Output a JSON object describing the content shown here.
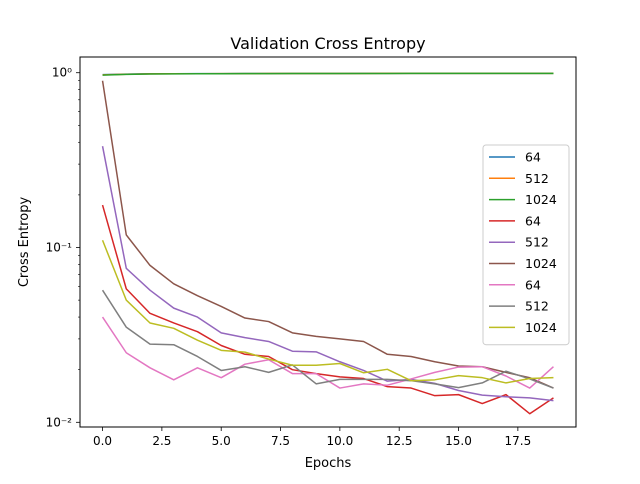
{
  "chart_data": {
    "type": "line",
    "title": "Validation Cross Entropy",
    "xlabel": "Epochs",
    "ylabel": "Cross Entropy",
    "xlim": [
      -0.95,
      19.95
    ],
    "ylim": [
      0.0094,
      1.23
    ],
    "yscale": "log",
    "grid": false,
    "legend_position": "right",
    "x_ticks": [
      0,
      2.5,
      5,
      7.5,
      10,
      12.5,
      15,
      17.5
    ],
    "x_tick_labels": [
      "0.0",
      "2.5",
      "5.0",
      "7.5",
      "10.0",
      "12.5",
      "15.0",
      "17.5"
    ],
    "y_ticks": [
      0.01,
      0.1,
      1
    ],
    "y_tick_labels": [
      "10⁻²",
      "10⁻¹",
      "10⁰"
    ],
    "x": [
      0,
      1,
      2,
      3,
      4,
      5,
      6,
      7,
      8,
      9,
      10,
      11,
      12,
      13,
      14,
      15,
      16,
      17,
      18,
      19
    ],
    "series": [
      {
        "name": "64",
        "color": "#1f77b4",
        "values": [
          0.975,
          0.982,
          0.986,
          0.987,
          0.988,
          0.988,
          0.989,
          0.989,
          0.99,
          0.99,
          0.99,
          0.991,
          0.991,
          0.991,
          0.991,
          0.991,
          0.992,
          0.992,
          0.992,
          0.992
        ]
      },
      {
        "name": "512",
        "color": "#ff7f0e",
        "values": [
          0.972,
          0.98,
          0.985,
          0.986,
          0.987,
          0.988,
          0.988,
          0.989,
          0.989,
          0.99,
          0.99,
          0.99,
          0.991,
          0.991,
          0.991,
          0.991,
          0.991,
          0.992,
          0.992,
          0.992
        ]
      },
      {
        "name": "1024",
        "color": "#2ca02c",
        "values": [
          0.968,
          0.978,
          0.984,
          0.985,
          0.986,
          0.987,
          0.988,
          0.988,
          0.989,
          0.989,
          0.99,
          0.99,
          0.99,
          0.991,
          0.991,
          0.991,
          0.991,
          0.991,
          0.992,
          0.992
        ]
      },
      {
        "name": "64",
        "color": "#d62728",
        "values": [
          0.175,
          0.058,
          0.042,
          0.037,
          0.033,
          0.0275,
          0.0245,
          0.0238,
          0.02,
          0.019,
          0.0182,
          0.0178,
          0.016,
          0.0157,
          0.0142,
          0.0144,
          0.0128,
          0.0144,
          0.0112,
          0.0138
        ]
      },
      {
        "name": "512",
        "color": "#9467bd",
        "values": [
          0.38,
          0.076,
          0.057,
          0.045,
          0.04,
          0.0325,
          0.0305,
          0.029,
          0.0255,
          0.0253,
          0.0222,
          0.0198,
          0.0172,
          0.0176,
          0.0167,
          0.0152,
          0.0143,
          0.014,
          0.0138,
          0.0133
        ]
      },
      {
        "name": "1024",
        "color": "#8c564b",
        "values": [
          0.9,
          0.118,
          0.079,
          0.062,
          0.053,
          0.046,
          0.0395,
          0.0377,
          0.0325,
          0.031,
          0.03,
          0.029,
          0.0245,
          0.0238,
          0.0222,
          0.021,
          0.0208,
          0.0193,
          0.018,
          0.0157
        ]
      },
      {
        "name": "64",
        "color": "#e377c2",
        "values": [
          0.04,
          0.025,
          0.0205,
          0.0175,
          0.0205,
          0.018,
          0.0215,
          0.0228,
          0.019,
          0.019,
          0.0157,
          0.0166,
          0.0163,
          0.0177,
          0.0193,
          0.0207,
          0.0208,
          0.0184,
          0.0157,
          0.0208
        ]
      },
      {
        "name": "512",
        "color": "#7f7f7f",
        "values": [
          0.057,
          0.035,
          0.028,
          0.0278,
          0.0238,
          0.0198,
          0.0208,
          0.0193,
          0.0213,
          0.0166,
          0.0176,
          0.0176,
          0.0176,
          0.0173,
          0.0166,
          0.0158,
          0.0168,
          0.0196,
          0.0177,
          0.0157
        ]
      },
      {
        "name": "1024",
        "color": "#bcbd22",
        "values": [
          0.11,
          0.05,
          0.037,
          0.0345,
          0.0295,
          0.0258,
          0.0252,
          0.023,
          0.0212,
          0.0212,
          0.0217,
          0.0192,
          0.0201,
          0.0173,
          0.0175,
          0.0185,
          0.018,
          0.0168,
          0.0178,
          0.018
        ]
      }
    ]
  }
}
